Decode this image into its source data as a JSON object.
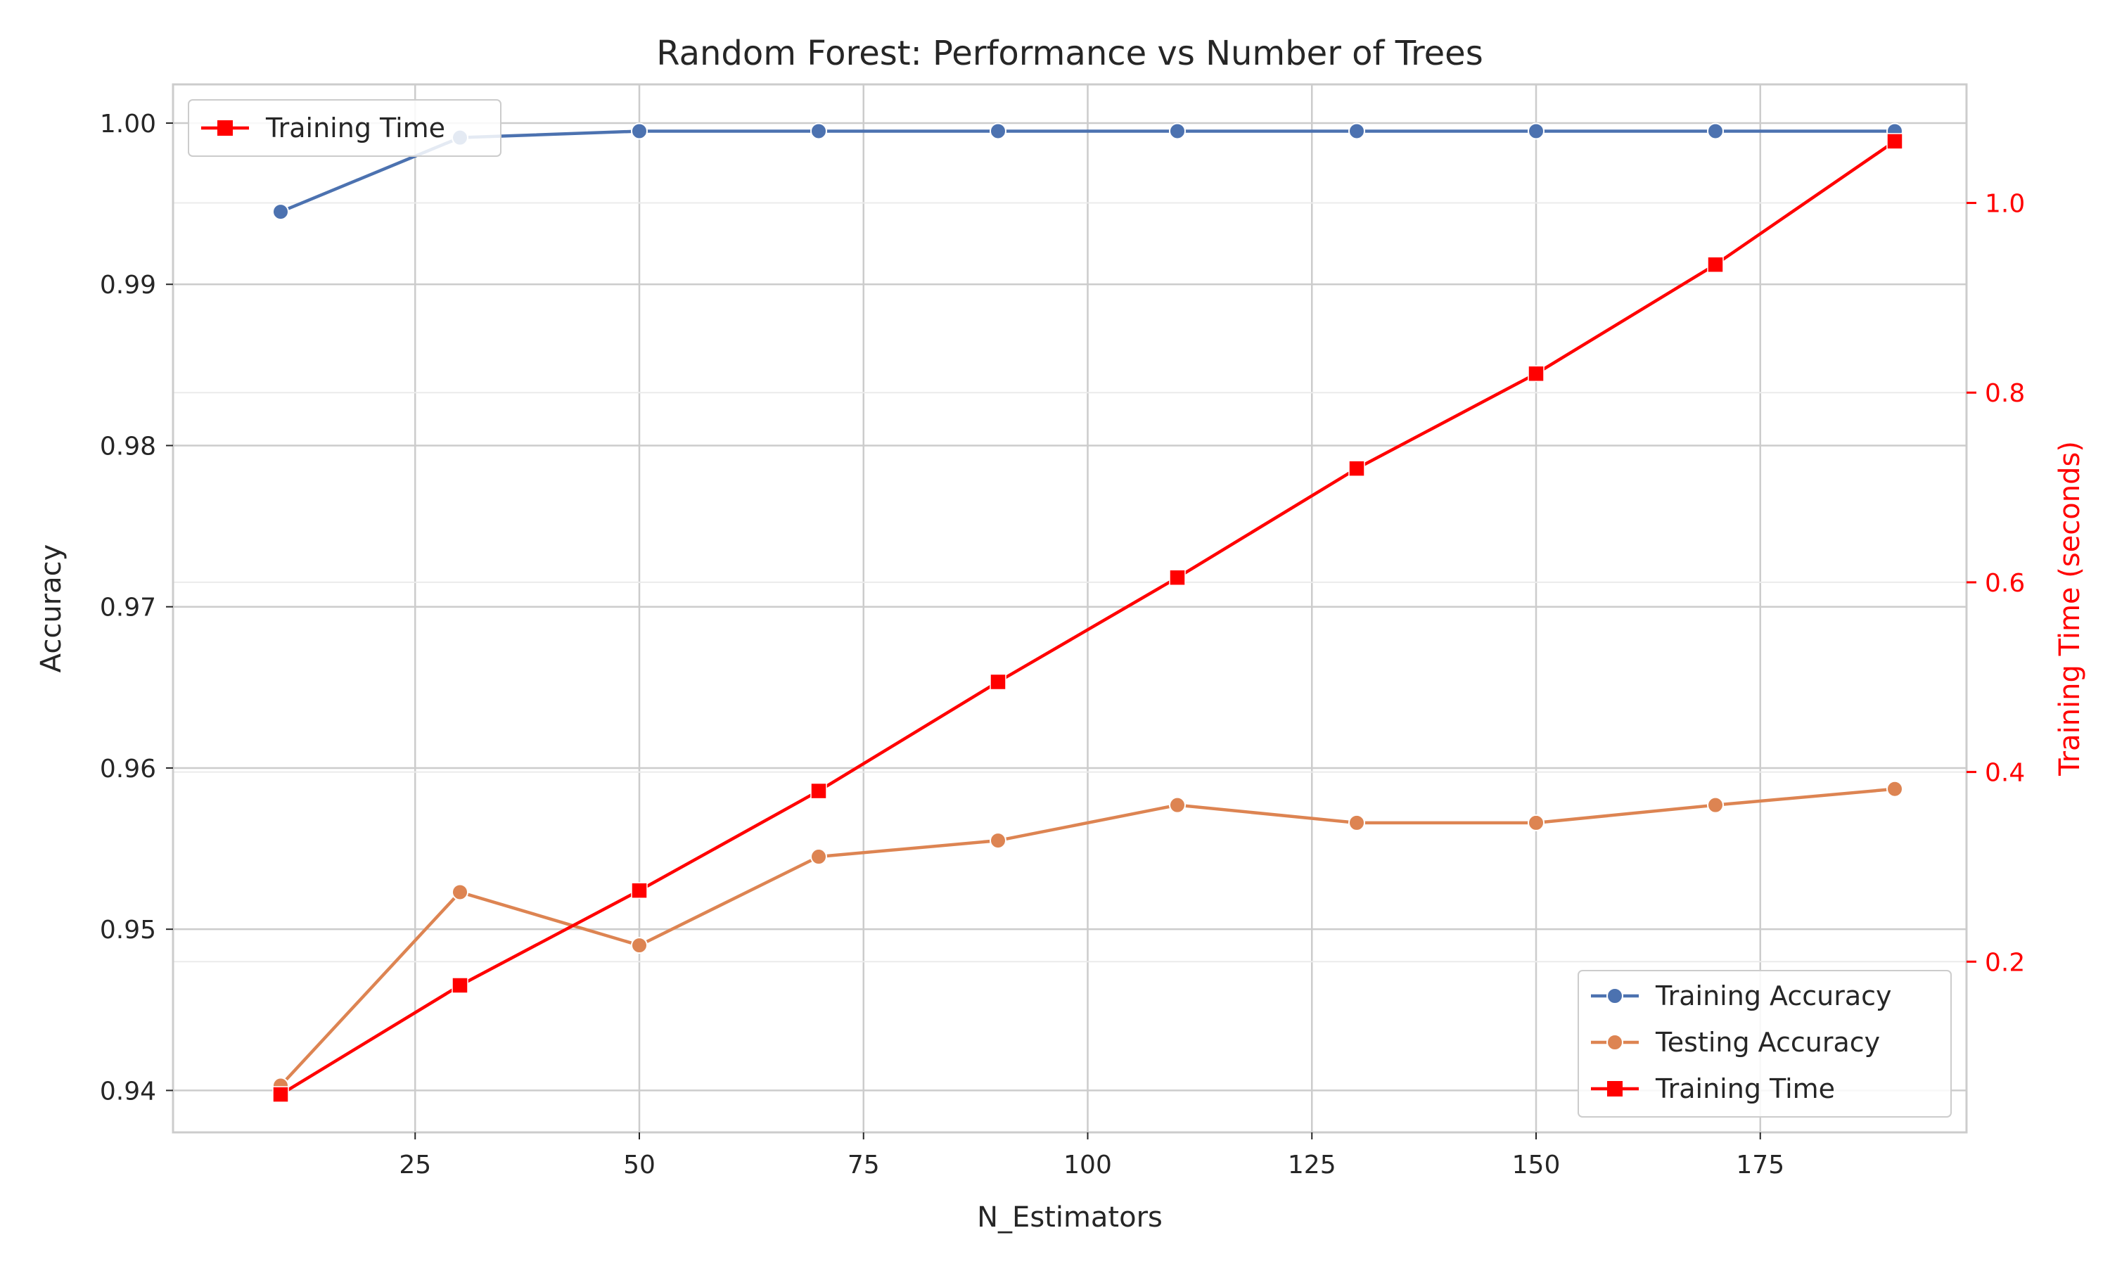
{
  "chart_data": {
    "type": "line",
    "title": "Random Forest: Performance vs Number of Trees",
    "xlabel": "N_Estimators",
    "ylabel": "Accuracy",
    "ylabel_right": "Training Time (seconds)",
    "x": [
      10,
      30,
      50,
      70,
      90,
      110,
      130,
      150,
      170,
      190
    ],
    "xlim": [
      -2,
      198
    ],
    "ylim": [
      0.9374,
      1.0024
    ],
    "ylim_right": [
      0.02,
      1.125
    ],
    "xticks": [
      25,
      50,
      75,
      100,
      125,
      150,
      175
    ],
    "yticks": [
      0.94,
      0.95,
      0.96,
      0.97,
      0.98,
      0.99,
      1.0
    ],
    "ytick_labels": [
      "0.94",
      "0.95",
      "0.96",
      "0.97",
      "0.98",
      "0.99",
      "1.00"
    ],
    "yticks_right": [
      0.2,
      0.4,
      0.6,
      0.8,
      1.0
    ],
    "ytick_labels_right": [
      "0.2",
      "0.4",
      "0.6",
      "0.8",
      "1.0"
    ],
    "grid": true,
    "series": [
      {
        "name": "Training Accuracy",
        "axis": "left",
        "color": "#4c72b0",
        "marker": "circle",
        "values": [
          0.9945,
          0.9991,
          0.9995,
          0.9995,
          0.9995,
          0.9995,
          0.9995,
          0.9995,
          0.9995,
          0.9995
        ]
      },
      {
        "name": "Testing Accuracy",
        "axis": "left",
        "color": "#dd8452",
        "marker": "circle",
        "values": [
          0.9403,
          0.9523,
          0.949,
          0.9545,
          0.9555,
          0.9577,
          0.9566,
          0.9566,
          0.9577,
          0.9587
        ]
      },
      {
        "name": "Training Time",
        "axis": "right",
        "color": "#ff0000",
        "marker": "square",
        "values": [
          0.06,
          0.175,
          0.275,
          0.38,
          0.495,
          0.605,
          0.72,
          0.82,
          0.935,
          1.065
        ]
      }
    ],
    "legend_upper_left": {
      "placement": "upper-left",
      "entries": [
        "Training Time"
      ]
    },
    "legend_lower_right": {
      "placement": "lower-right",
      "entries": [
        "Training Accuracy",
        "Testing Accuracy",
        "Training Time"
      ]
    }
  }
}
